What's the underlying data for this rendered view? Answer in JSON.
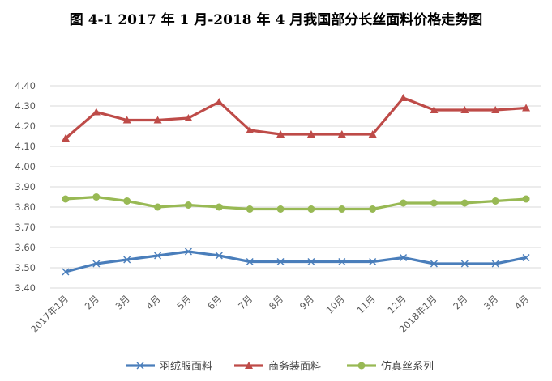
{
  "chart_data": {
    "type": "line",
    "title": "图 4-1   2017 年 1 月-2018 年 4 月我国部分长丝面料价格走势图",
    "xlabel": "",
    "ylabel": "",
    "categories": [
      "2017年1月",
      "2月",
      "3月",
      "4月",
      "5月",
      "6月",
      "7月",
      "8月",
      "9月",
      "10月",
      "11月",
      "12月",
      "2018年1月",
      "2月",
      "3月",
      "4月"
    ],
    "y_tick_labels": [
      "3.40",
      "3.50",
      "3.60",
      "3.70",
      "3.80",
      "3.90",
      "4.00",
      "4.10",
      "4.20",
      "4.30",
      "4.40"
    ],
    "ylim": [
      3.4,
      4.4
    ],
    "grid": true,
    "legend_position": "bottom",
    "series": [
      {
        "name": "羽绒服面料",
        "color": "#4a7ebb",
        "marker": "x",
        "values": [
          3.48,
          3.52,
          3.54,
          3.56,
          3.58,
          3.56,
          3.53,
          3.53,
          3.53,
          3.53,
          3.53,
          3.55,
          3.52,
          3.52,
          3.52,
          3.55
        ]
      },
      {
        "name": "商务装面料",
        "color": "#be4b48",
        "marker": "triangle",
        "values": [
          4.14,
          4.27,
          4.23,
          4.23,
          4.24,
          4.32,
          4.18,
          4.16,
          4.16,
          4.16,
          4.16,
          4.34,
          4.28,
          4.28,
          4.28,
          4.29
        ]
      },
      {
        "name": "仿真丝系列",
        "color": "#98b954",
        "marker": "circle",
        "values": [
          3.84,
          3.85,
          3.83,
          3.8,
          3.81,
          3.8,
          3.79,
          3.79,
          3.79,
          3.79,
          3.79,
          3.82,
          3.82,
          3.82,
          3.83,
          3.84
        ]
      }
    ]
  }
}
